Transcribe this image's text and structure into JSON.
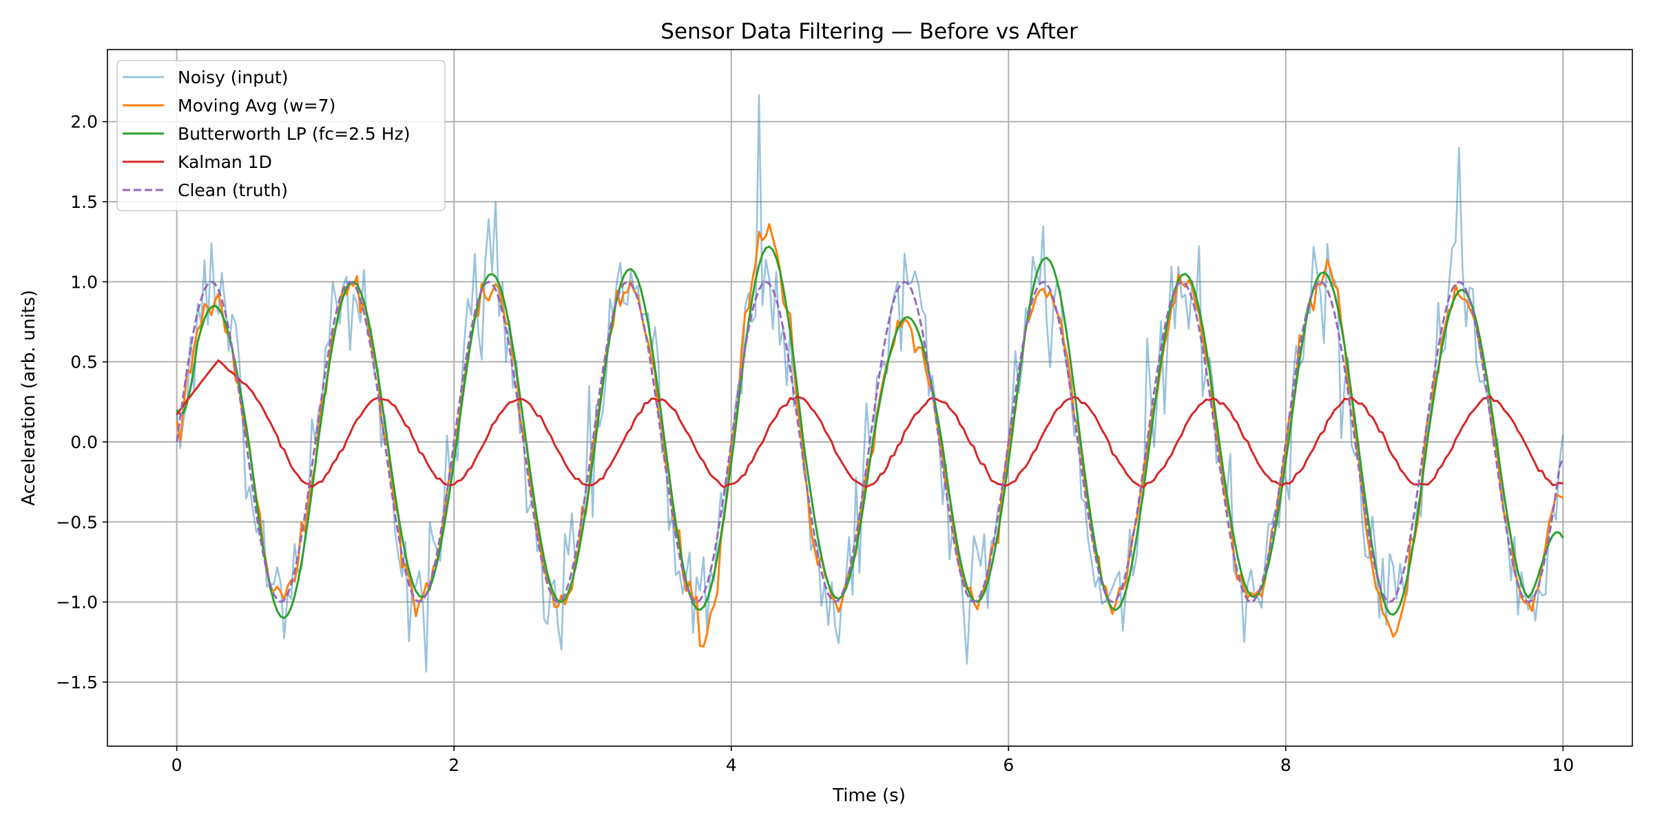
{
  "chart_data": {
    "type": "line",
    "title": "Sensor Data Filtering — Before vs After",
    "xlabel": "Time (s)",
    "ylabel": "Acceleration (arb. units)",
    "xlim": [
      -0.5,
      10.5
    ],
    "ylim": [
      -1.9,
      2.45
    ],
    "xticks": [
      0,
      2,
      4,
      6,
      8,
      10
    ],
    "xtick_labels": [
      "0",
      "2",
      "4",
      "6",
      "8",
      "10"
    ],
    "yticks": [
      -1.5,
      -1.0,
      -0.5,
      0.0,
      0.5,
      1.0,
      1.5,
      2.0
    ],
    "ytick_labels": [
      "−1.5",
      "−1.0",
      "−0.5",
      "0.0",
      "0.5",
      "1.0",
      "1.5",
      "2.0"
    ],
    "grid": true,
    "legend_position": "top-left",
    "x_range": [
      0,
      10
    ],
    "x_step": 0.025,
    "signal": {
      "frequency_hz": 1.0,
      "amplitude": 1.0,
      "clean_start_value": 0.0,
      "clean_end_value": -0.1
    },
    "series": [
      {
        "name": "Noisy (input)",
        "color": "#1f77b4",
        "opacity": 0.45,
        "dash": "solid",
        "noise_std": 0.2,
        "noise_spikes": [
          [
            4.2,
            1.0
          ],
          [
            2.3,
            0.6
          ],
          [
            9.24,
            0.5
          ],
          [
            7.6,
            0.6
          ]
        ]
      },
      {
        "name": "Moving Avg (w=7)",
        "color": "#ff7f0e",
        "dash": "solid",
        "amplitude_mod": [
          [
            0.2,
            0.9
          ],
          [
            4.2,
            1.32
          ],
          [
            5.2,
            0.75
          ],
          [
            8.75,
            1.15
          ],
          [
            9.25,
            0.95
          ]
        ],
        "end_value": -0.35
      },
      {
        "name": "Butterworth LP (fc=2.5 Hz)",
        "color": "#2ca02c",
        "dash": "solid",
        "start_value": 0.2,
        "end_value": -0.6,
        "peak_values": [
          [
            0.2,
            0.85
          ],
          [
            1.27,
            1.0
          ],
          [
            2.27,
            1.05
          ],
          [
            3.27,
            1.08
          ],
          [
            4.22,
            1.22
          ],
          [
            5.22,
            0.78
          ],
          [
            6.25,
            1.15
          ],
          [
            7.25,
            1.05
          ],
          [
            8.3,
            1.06
          ],
          [
            9.25,
            0.95
          ]
        ],
        "trough_values": [
          [
            0.75,
            -1.1
          ],
          [
            1.75,
            -0.97
          ],
          [
            2.75,
            -1.0
          ],
          [
            3.75,
            -1.05
          ],
          [
            4.75,
            -0.98
          ],
          [
            5.75,
            -1.0
          ],
          [
            6.75,
            -1.05
          ],
          [
            7.75,
            -0.97
          ],
          [
            8.75,
            -1.08
          ],
          [
            9.75,
            -0.98
          ]
        ]
      },
      {
        "name": "Kalman 1D",
        "color": "#d62728",
        "dash": "solid",
        "start_value": 0.17,
        "amplitude": 0.27,
        "phase_lag_s": 0.22,
        "initial_peak": [
          0.3,
          0.7
        ],
        "end_value": -0.26
      },
      {
        "name": "Clean (truth)",
        "color": "#9467bd",
        "dash": "dashed"
      }
    ]
  }
}
